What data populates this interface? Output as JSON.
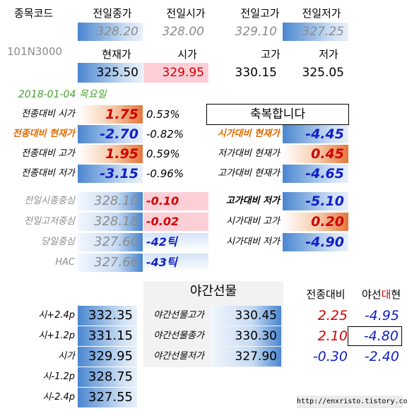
{
  "header": {
    "code_label": "종목코드",
    "code_value": "101N3000",
    "cols_top": [
      "전일종가",
      "전일시가",
      "전일고가",
      "전일저가"
    ],
    "vals_top": [
      "328.20",
      "328.00",
      "329.10",
      "327.25"
    ],
    "cols_bottom": [
      "현재가",
      "시가",
      "고가",
      "저가"
    ],
    "vals_bottom": [
      "325.50",
      "329.95",
      "330.15",
      "325.05"
    ]
  },
  "date": "2018-01-04 목요일",
  "left_stats": [
    {
      "label": "전종대비 시가",
      "value": "1.75",
      "pct": "0.53%"
    },
    {
      "label": "전종대비 현재가",
      "value": "-2.70",
      "pct": "-0.82%"
    },
    {
      "label": "전종대비 고가",
      "value": "1.95",
      "pct": "0.59%"
    },
    {
      "label": "전종대비 저가",
      "value": "-3.15",
      "pct": "-0.96%"
    }
  ],
  "banner": "축복합니다",
  "right_stats": [
    {
      "label": "시가대비 현재가",
      "value": "-4.45"
    },
    {
      "label": "저가대비 현재가",
      "value": "0.45"
    },
    {
      "label": "고가대비 현재가",
      "value": "-4.65"
    }
  ],
  "centers": [
    {
      "label": "전일시종중심",
      "value": "328.10",
      "diff": "-0.10"
    },
    {
      "label": "전일고저중심",
      "value": "328.18",
      "diff": "-0.02"
    },
    {
      "label": "당일중심",
      "value": "327.60",
      "diff": "-42틱"
    },
    {
      "label": "HAC",
      "value": "327.66",
      "diff": "-43틱"
    }
  ],
  "right_stats2": [
    {
      "label": "고가대비 저가",
      "value": "-5.10"
    },
    {
      "label": "시가대비 고가",
      "value": "0.20"
    },
    {
      "label": "시가대비 저가",
      "value": "-4.90"
    }
  ],
  "night": {
    "title": "야간선물",
    "col1": "전종대비",
    "col2_a": "야선",
    "col2_b": "대",
    "col2_c": "현",
    "rows": [
      {
        "label": "야간선물고가",
        "value": "330.45",
        "d1": "2.25",
        "d2": "-4.95"
      },
      {
        "label": "야간선물종가",
        "value": "330.30",
        "d1": "2.10",
        "d2": "-4.80"
      },
      {
        "label": "야간선물저가",
        "value": "327.90",
        "d1": "-0.30",
        "d2": "-2.40"
      }
    ]
  },
  "levels": [
    {
      "label": "시+2.4p",
      "value": "332.35"
    },
    {
      "label": "시+1.2p",
      "value": "331.15"
    },
    {
      "label": "시가",
      "value": "329.95"
    },
    {
      "label": "시-1.2p",
      "value": "328.75"
    },
    {
      "label": "시-2.4p",
      "value": "327.55"
    }
  ],
  "footer": "http://enxristo.tistory.com"
}
